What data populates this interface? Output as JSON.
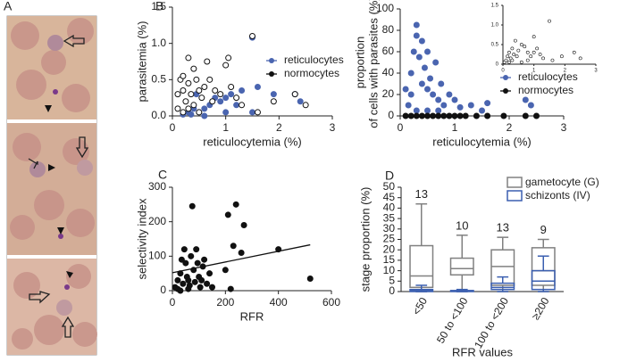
{
  "figure": {
    "panel_labels": [
      "A",
      "B",
      "C",
      "D"
    ]
  },
  "chart_data": [
    {
      "type": "scatter",
      "x_label": "reticulocytemia (%)",
      "y_label": [
        "parasitemia (%)"
      ],
      "xlim": [
        0,
        3
      ],
      "xticks": [
        0,
        1,
        2,
        3
      ],
      "ylim": [
        0,
        1.5
      ],
      "yticks": [
        {
          "value": 0,
          "label": "0.0"
        },
        0.5,
        {
          "value": 1,
          "label": "1.0"
        },
        1.5
      ],
      "legend": "right",
      "series": [
        {
          "name": "reticulocytes",
          "color": "#4a65b0",
          "marker": "filled",
          "x": [
            0.2,
            0.3,
            0.4,
            0.5,
            0.6,
            0.7,
            0.8,
            0.9,
            1.0,
            1.1,
            1.3,
            1.5,
            1.6,
            1.9,
            2.3,
            2.4,
            0.45,
            1.2,
            0.35,
            0.6,
            1.0,
            1.5
          ],
          "values": [
            0.02,
            0.05,
            0.1,
            0.05,
            0.1,
            0.15,
            0.25,
            0.2,
            0.25,
            0.3,
            0.35,
            1.08,
            0.4,
            0.3,
            0.3,
            0.2,
            0.3,
            0.15,
            0.02,
            0,
            0.05,
            0.05
          ]
        },
        {
          "name": "normocytes",
          "color": "#111111",
          "marker": "open",
          "x": [
            0.1,
            0.15,
            0.2,
            0.2,
            0.25,
            0.3,
            0.3,
            0.35,
            0.4,
            0.45,
            0.5,
            0.55,
            0.6,
            0.65,
            0.7,
            0.75,
            0.8,
            0.9,
            1.0,
            1.05,
            1.1,
            1.2,
            1.3,
            1.5,
            1.6,
            1.9,
            2.3,
            2.5,
            0.1,
            0.2,
            0.3,
            0.5,
            0.4
          ],
          "values": [
            0.3,
            0.5,
            0.55,
            0.35,
            0.2,
            0.8,
            0.45,
            0.3,
            0.65,
            0.5,
            0.35,
            0.25,
            0.4,
            0.75,
            0.5,
            0.2,
            0.35,
            0.3,
            0.7,
            0.8,
            0.4,
            0.25,
            0.15,
            1.1,
            0.05,
            0.2,
            0.3,
            0.15,
            0.1,
            0.05,
            0.1,
            0.05,
            0.15
          ]
        }
      ]
    },
    {
      "type": "scatter",
      "x_label": "reticulocytemia (%)",
      "y_label": [
        "proportion",
        "of cells with parasites (%)"
      ],
      "xlim": [
        0,
        3
      ],
      "xticks": [
        0,
        1,
        2,
        3
      ],
      "ylim": [
        0,
        100
      ],
      "yticks": [
        0,
        20,
        40,
        60,
        80,
        100
      ],
      "legend": "lower right",
      "series": [
        {
          "name": "reticulocytes",
          "color": "#4a65b0",
          "marker": "filled",
          "x": [
            0.2,
            0.25,
            0.3,
            0.3,
            0.35,
            0.4,
            0.4,
            0.45,
            0.5,
            0.5,
            0.55,
            0.6,
            0.65,
            0.7,
            0.75,
            0.8,
            0.9,
            1.0,
            1.1,
            1.3,
            1.5,
            1.6,
            2.3,
            2.4,
            0.2,
            0.15,
            0.3,
            0.5,
            0.1,
            0.7
          ],
          "values": [
            40,
            60,
            85,
            75,
            55,
            70,
            30,
            45,
            25,
            60,
            35,
            20,
            50,
            15,
            30,
            10,
            20,
            15,
            8,
            10,
            5,
            12,
            15,
            10,
            20,
            10,
            5,
            5,
            25,
            5
          ]
        },
        {
          "name": "normocytes",
          "color": "#111111",
          "marker": "filled",
          "x": [
            0.1,
            0.2,
            0.3,
            0.4,
            0.5,
            0.6,
            0.7,
            0.8,
            0.9,
            1.0,
            1.1,
            1.2,
            1.4,
            1.6,
            1.9,
            2.3,
            2.5
          ],
          "values": [
            0,
            0,
            0,
            0,
            0,
            0,
            0,
            0,
            0,
            0,
            0,
            0,
            0,
            0,
            0,
            0,
            0
          ]
        }
      ]
    },
    {
      "type": "scatter",
      "xlim": [
        0,
        3
      ],
      "xticks": [
        0,
        1,
        2,
        3
      ],
      "ylim": [
        0,
        1.5
      ],
      "yticks": [
        0,
        0.5,
        {
          "value": 1,
          "label": "1.0"
        },
        1.5
      ],
      "series": [
        {
          "color": "#111111",
          "marker": "open",
          "x": [
            0.05,
            0.1,
            0.15,
            0.2,
            0.25,
            0.3,
            0.35,
            0.4,
            0.5,
            0.6,
            0.7,
            0.8,
            0.9,
            1.0,
            1.1,
            1.2,
            1.3,
            1.5,
            1.6,
            1.9,
            2.3,
            2.5,
            0.2,
            0.3,
            0.45,
            0.6,
            0.8,
            1.0
          ],
          "values": [
            0.05,
            0.1,
            0.2,
            0.3,
            0.15,
            0.4,
            0.25,
            0.6,
            0.35,
            0.5,
            0.45,
            0.3,
            0.2,
            0.7,
            0.4,
            0.25,
            0.15,
            1.1,
            0.1,
            0.2,
            0.3,
            0.15,
            0.05,
            0.1,
            0.2,
            0.05,
            0.1,
            0.3
          ]
        }
      ]
    },
    {
      "type": "scatter",
      "x_label": "RFR",
      "y_label": [
        "selectivity index"
      ],
      "xlim": [
        0,
        600
      ],
      "xticks": [
        0,
        200,
        400,
        600
      ],
      "ylim": [
        0,
        300
      ],
      "yticks": [
        0,
        100,
        200,
        300
      ],
      "trendline": {
        "x": [
          0,
          520
        ],
        "values": [
          52,
          133
        ]
      },
      "series": [
        {
          "color": "#111111",
          "marker": "filled",
          "x": [
            10,
            20,
            30,
            40,
            50,
            60,
            70,
            75,
            80,
            90,
            100,
            110,
            120,
            130,
            150,
            200,
            210,
            220,
            230,
            240,
            260,
            270,
            400,
            520,
            20,
            35,
            45,
            55,
            65,
            85,
            95,
            105,
            115,
            140,
            30,
            60
          ],
          "values": [
            10,
            30,
            50,
            20,
            80,
            5,
            100,
            245,
            60,
            120,
            40,
            30,
            90,
            20,
            10,
            60,
            220,
            5,
            130,
            250,
            110,
            190,
            120,
            35,
            5,
            90,
            120,
            40,
            15,
            25,
            80,
            10,
            70,
            50,
            0,
            30
          ]
        }
      ]
    },
    {
      "type": "box",
      "x_label": "RFR values",
      "y_label": [
        "stage proportion (%)"
      ],
      "categories": [
        "<50",
        "50 to <100",
        "100 to <200",
        "≥200"
      ],
      "n_labels": [
        13,
        10,
        13,
        9
      ],
      "ylim": [
        0,
        50
      ],
      "yticks": [
        0,
        5,
        10,
        15,
        20,
        25,
        30,
        35,
        40,
        45,
        50
      ],
      "legend": "upper right",
      "series": [
        {
          "name": "gametocyte (G)",
          "color": "#808080",
          "whislo": [
            0,
            0,
            0,
            0
          ],
          "q1": [
            2,
            8,
            3,
            3
          ],
          "med": [
            7.5,
            11,
            12,
            10
          ],
          "q3": [
            22,
            16,
            20,
            21
          ],
          "whishi": [
            42,
            27,
            26,
            25
          ]
        },
        {
          "name": "schizonts (IV)",
          "color": "#3b5fb0",
          "whislo": [
            0,
            0,
            0,
            0
          ],
          "q1": [
            0,
            0,
            1,
            1
          ],
          "med": [
            0.5,
            0.2,
            2,
            5
          ],
          "q3": [
            1,
            0.5,
            4,
            10
          ],
          "whishi": [
            3,
            1,
            7,
            17
          ]
        }
      ]
    }
  ]
}
